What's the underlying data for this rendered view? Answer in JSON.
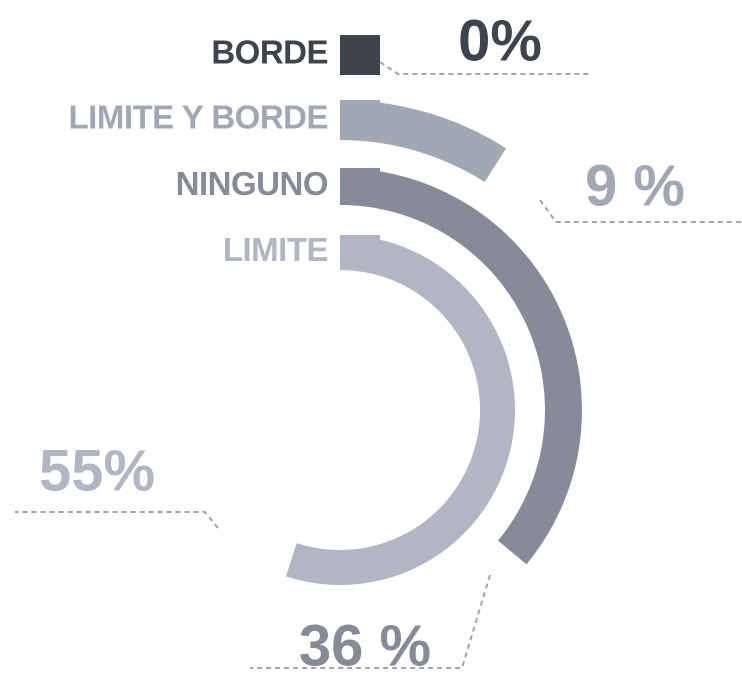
{
  "chart_data": {
    "type": "radial-bar",
    "series": [
      {
        "name": "BORDE",
        "color": "#3f434c",
        "values": [
          0
        ],
        "value_labels": [
          "0%"
        ]
      },
      {
        "name": "LIMITE Y BORDE",
        "color": "#a2a7b4",
        "values": [
          9
        ],
        "value_labels": [
          "9 %"
        ]
      },
      {
        "name": "NINGUNO",
        "color": "#868b97",
        "values": [
          36
        ],
        "value_labels": [
          "36 %"
        ]
      },
      {
        "name": "LIMITE",
        "color": "#b2b6c3",
        "values": [
          55
        ],
        "value_labels": [
          "55%"
        ]
      }
    ],
    "ylim": [
      0,
      100
    ]
  }
}
